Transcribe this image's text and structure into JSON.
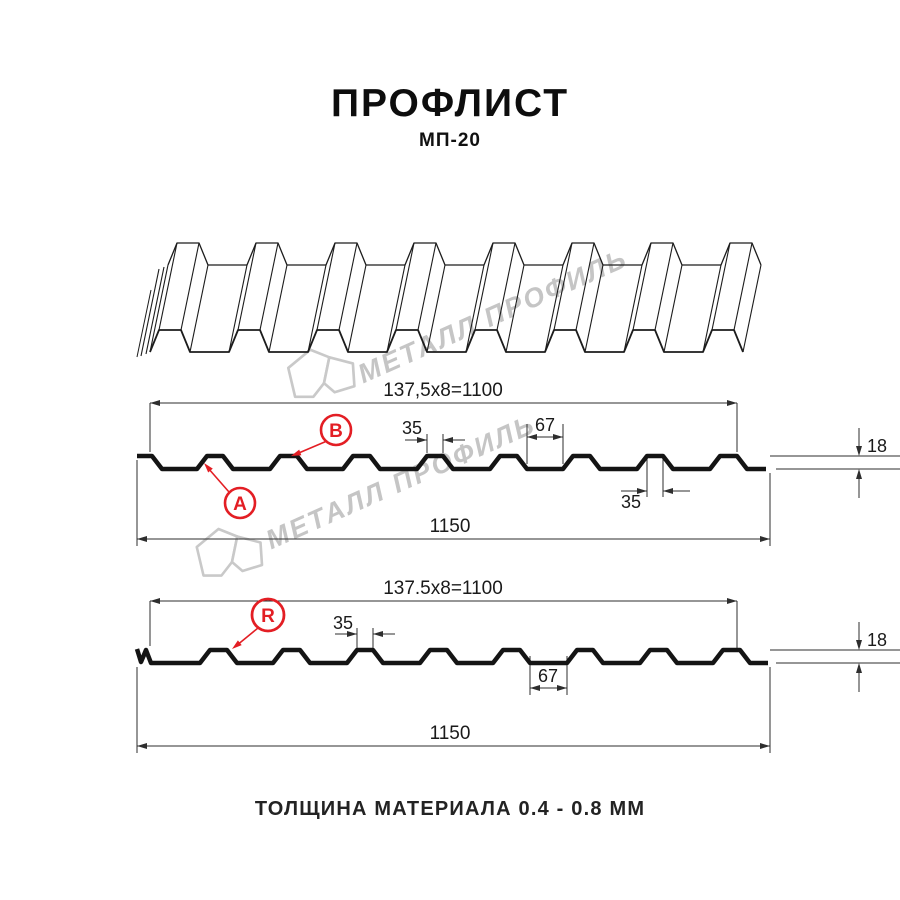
{
  "header": {
    "title": "ПРОФЛИСТ",
    "subtitle": "МП-20"
  },
  "watermark": {
    "brand": "МЕТАЛЛ ПРОФИЛЬ"
  },
  "footer": {
    "thickness_note": "ТОЛЩИНА МАТЕРИАЛА 0.4 - 0.8 ММ"
  },
  "colors": {
    "accent_red": "#e31e24",
    "line_black": "#141414",
    "dim_gray": "#2e2e2e",
    "watermark_gray": "#c5c5c5"
  },
  "diagram_top": {
    "module_width_label": "137,5x8=1100",
    "overall_width_label": "1150",
    "rib_width_label": "35",
    "flange_width_label": "67",
    "height_label": "18",
    "end_rib_width_label": "35",
    "marker_a": "A",
    "marker_b": "B"
  },
  "diagram_bottom": {
    "module_width_label": "137.5x8=1100",
    "overall_width_label": "1150",
    "rib_width_label": "35",
    "flange_width_label": "67",
    "height_label": "18",
    "marker_r": "R"
  }
}
